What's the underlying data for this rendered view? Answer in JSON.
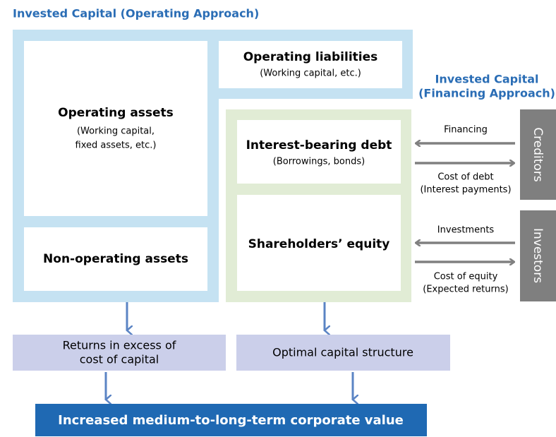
{
  "header": {
    "left_title": "Invested Capital (Operating Approach)",
    "right_title": [
      "Invested Capital",
      "(Financing Approach)"
    ]
  },
  "operating": {
    "operating_assets": {
      "title": "Operating assets",
      "lines": [
        "(Working capital,",
        "fixed assets, etc.)"
      ]
    },
    "non_operating_assets": {
      "title": "Non-operating assets"
    },
    "operating_liabilities": {
      "title": "Operating liabilities",
      "lines": [
        "(Working capital, etc.)"
      ]
    }
  },
  "financing": {
    "debt": {
      "title": "Interest-bearing debt",
      "lines": [
        "(Borrowings, bonds)"
      ]
    },
    "equity": {
      "title": "Shareholders’ equity"
    }
  },
  "actors": {
    "creditors": "Creditors",
    "investors": "Investors"
  },
  "flows": {
    "financing": "Financing",
    "cost_of_debt": [
      "Cost of debt",
      "(Interest payments)"
    ],
    "investments": "Investments",
    "cost_of_equity": [
      "Cost of equity",
      "(Expected returns)"
    ]
  },
  "outcomes": {
    "returns": [
      "Returns in excess of",
      "cost of capital"
    ],
    "structure": "Optimal capital structure"
  },
  "result": "Increased medium-to-long-term corporate value"
}
